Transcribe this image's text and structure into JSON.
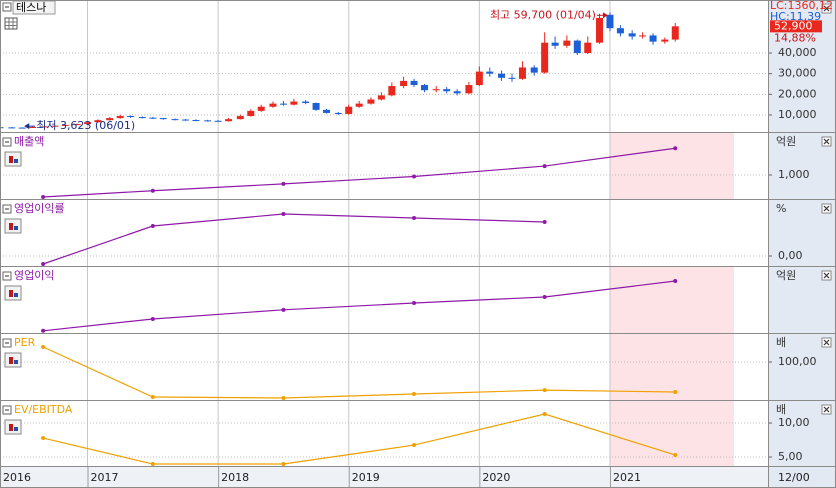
{
  "chart_data": [
    {
      "type": "candlestick",
      "title": "테스나",
      "x": [
        2016.33,
        2016.42,
        2016.5,
        2016.58,
        2016.67,
        2016.75,
        2016.83,
        2016.92,
        2017,
        2017.08,
        2017.17,
        2017.25,
        2017.33,
        2017.42,
        2017.5,
        2017.58,
        2017.67,
        2017.75,
        2017.83,
        2017.92,
        2018,
        2018.08,
        2018.17,
        2018.25,
        2018.33,
        2018.42,
        2018.5,
        2018.58,
        2018.67,
        2018.75,
        2018.83,
        2018.92,
        2019,
        2019.08,
        2019.17,
        2019.25,
        2019.33,
        2019.42,
        2019.5,
        2019.58,
        2019.67,
        2019.75,
        2019.83,
        2019.92,
        2020,
        2020.08,
        2020.17,
        2020.25,
        2020.33,
        2020.42,
        2020.5,
        2020.58,
        2020.67,
        2020.75,
        2020.83,
        2020.92,
        2021,
        2021.08,
        2021.17,
        2021.25,
        2021.33,
        2021.42,
        2021.5
      ],
      "open": [
        4100,
        4000,
        3900,
        3800,
        4200,
        4500,
        4800,
        5200,
        5600,
        6500,
        7500,
        8500,
        9500,
        9000,
        8700,
        8500,
        8000,
        7800,
        7600,
        7400,
        7200,
        7000,
        8000,
        9500,
        12000,
        14000,
        15500,
        15000,
        16500,
        15800,
        12500,
        11000,
        10500,
        14000,
        15500,
        17500,
        19500,
        24000,
        26500,
        24500,
        22000,
        22500,
        21500,
        20500,
        24500,
        31000,
        30000,
        28000,
        27500,
        33000,
        30500,
        45000,
        43500,
        46000,
        40000,
        45000,
        58500,
        52000,
        49500,
        48000,
        48500,
        45500,
        46500
      ],
      "high": [
        4300,
        4200,
        4100,
        4400,
        4700,
        5000,
        5400,
        5900,
        6900,
        7900,
        9000,
        10200,
        9800,
        9300,
        9000,
        8600,
        8300,
        8100,
        7900,
        7700,
        7500,
        8600,
        10200,
        12800,
        15000,
        16500,
        16800,
        17800,
        17200,
        16000,
        13000,
        11500,
        15000,
        16800,
        18500,
        21000,
        25800,
        28500,
        27500,
        25000,
        24000,
        23500,
        22500,
        26000,
        33500,
        33000,
        31500,
        30000,
        36000,
        34000,
        50000,
        48000,
        48500,
        46500,
        48000,
        59000,
        59700,
        53500,
        51000,
        50000,
        49500,
        47500,
        54500
      ],
      "low": [
        3800,
        3700,
        3623,
        3700,
        4100,
        4400,
        4700,
        5100,
        5400,
        6300,
        7300,
        8200,
        8600,
        8300,
        8100,
        7700,
        7400,
        7200,
        7000,
        6800,
        6700,
        6800,
        7800,
        9200,
        11500,
        13500,
        14500,
        14600,
        15200,
        12000,
        10700,
        10000,
        10200,
        13500,
        15000,
        17000,
        19000,
        23000,
        23500,
        21000,
        21000,
        20500,
        19500,
        20000,
        24000,
        28500,
        26500,
        26000,
        27000,
        29000,
        30000,
        42000,
        42500,
        39000,
        39500,
        44500,
        50500,
        48000,
        46500,
        47000,
        44000,
        44500,
        45500
      ],
      "close": [
        4000,
        3900,
        3800,
        4200,
        4500,
        4800,
        5200,
        5600,
        6500,
        7500,
        8500,
        9500,
        9000,
        8700,
        8500,
        8000,
        7800,
        7600,
        7400,
        7200,
        7000,
        8000,
        9500,
        12000,
        14000,
        15500,
        15000,
        16500,
        15800,
        12500,
        11000,
        10500,
        14000,
        15500,
        17500,
        19500,
        24000,
        26500,
        24500,
        22000,
        22500,
        21500,
        20500,
        24500,
        31000,
        30000,
        28000,
        27500,
        33000,
        30500,
        45000,
        43500,
        46000,
        40000,
        45000,
        57000,
        52000,
        49500,
        48000,
        48500,
        45500,
        46500,
        52900
      ],
      "up_color": "#e8281e",
      "down_color": "#1c5fd6",
      "xlim": [
        2016.33,
        2022.21
      ],
      "ylim": [
        1775,
        65640
      ],
      "yticks": [
        {
          "value": 10000,
          "label": "10,000"
        },
        {
          "value": 20000,
          "label": "20,000"
        },
        {
          "value": 30000,
          "label": "30,000"
        },
        {
          "value": 40000,
          "label": "40,000"
        }
      ],
      "grid": true,
      "annotations": [
        {
          "text": "최고 59,700 (01/04)",
          "x": 2021,
          "y": 59700,
          "side": "left"
        },
        {
          "text": "최저 3,623 (06/01)",
          "x": 2016.5,
          "y": 3623,
          "side": "right"
        }
      ],
      "last_price": {
        "value": 52900,
        "label": "52,900"
      },
      "change_label": "14,88%",
      "info_labels": [
        {
          "text": "LC:1360,12",
          "color": "#e8281e"
        },
        {
          "text": "HC:11,39",
          "color": "#1c5fd6"
        }
      ]
    },
    {
      "type": "line",
      "title": "매출액",
      "unit": "억원",
      "color": "#8e1aa8",
      "x": [
        2016.66,
        2017.5,
        2018.5,
        2019.5,
        2020.5,
        2021.5
      ],
      "values": [
        260,
        470,
        700,
        950,
        1300,
        1900
      ],
      "xlim": [
        2016.33,
        2022.21
      ],
      "ylim": [
        192,
        2414
      ],
      "yticks": [
        {
          "value": 1000,
          "label": "1,000"
        }
      ],
      "grid": true,
      "shade": [
        2021,
        2021.95
      ]
    },
    {
      "type": "line",
      "title": "영업이익률",
      "unit": "%",
      "color": "#8e1aa8",
      "x": [
        2016.66,
        2017.5,
        2018.5,
        2019.5,
        2020.5
      ],
      "values": [
        -4.8,
        18,
        25.2,
        22.8,
        20.4
      ],
      "xlim": [
        2016.33,
        2022.21
      ],
      "ylim": [
        -6,
        33.6
      ],
      "yticks": [
        {
          "value": 0,
          "label": "0,00"
        }
      ],
      "grid": true
    },
    {
      "type": "line",
      "title": "영업이익",
      "unit": "억원",
      "color": "#8e1aa8",
      "x": [
        2016.66,
        2017.5,
        2018.5,
        2019.5,
        2020.5,
        2021.5
      ],
      "values": [
        -12,
        85,
        160,
        216,
        265,
        396
      ],
      "xlim": [
        2016.33,
        2022.21
      ],
      "ylim": [
        -30,
        511
      ],
      "yticks": [],
      "grid": true,
      "shade": [
        2021,
        2021.95
      ]
    },
    {
      "type": "line",
      "title": "PER",
      "unit": "배",
      "color": "#f0a000",
      "x": [
        2016.66,
        2017.5,
        2018.5,
        2019.5,
        2020.5,
        2021.5
      ],
      "values": [
        139.5,
        7.9,
        5.3,
        15.8,
        26,
        21
      ],
      "xlim": [
        2016.33,
        2022.21
      ],
      "ylim": [
        0,
        173.7
      ],
      "yticks": [
        {
          "value": 100,
          "label": "100,00"
        }
      ],
      "grid": true,
      "shade": [
        2021,
        2021.95
      ]
    },
    {
      "type": "line",
      "title": "EV/EBITDA",
      "unit": "배",
      "color": "#f0a000",
      "x": [
        2016.66,
        2017.5,
        2018.5,
        2019.5,
        2020.5,
        2021.5
      ],
      "values": [
        7.79,
        3.97,
        3.97,
        6.76,
        11.32,
        5.29
      ],
      "xlim": [
        2016.33,
        2022.21
      ],
      "ylim": [
        3.68,
        13.24
      ],
      "yticks": [
        {
          "value": 10,
          "label": "10,00"
        },
        {
          "value": 5,
          "label": "5,00"
        }
      ],
      "grid": true,
      "shade": [
        2021,
        2021.95
      ],
      "xticks": [
        2016,
        2017,
        2018,
        2019,
        2020,
        2021
      ],
      "x_end_label": "12/00"
    }
  ]
}
